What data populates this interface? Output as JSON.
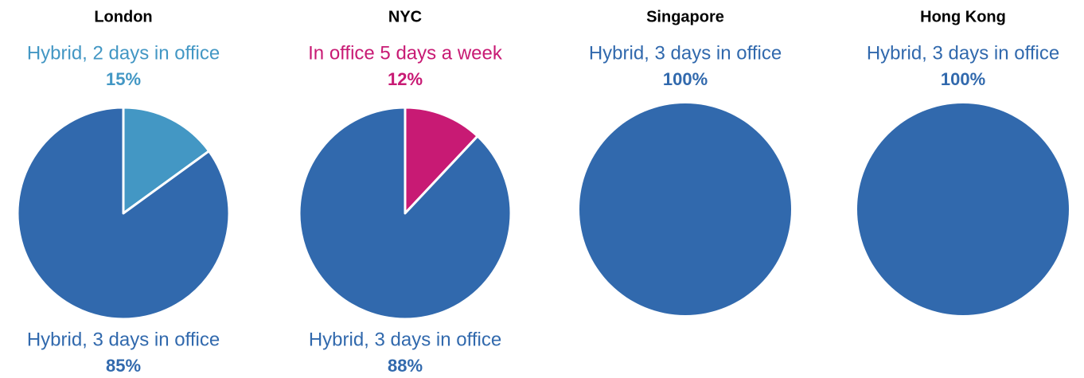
{
  "chart_data": [
    {
      "type": "pie",
      "title": "London",
      "categories": [
        "Hybrid, 2 days in office",
        "Hybrid, 3 days in office"
      ],
      "values": [
        15,
        85
      ],
      "value_labels": [
        "15%",
        "85%"
      ],
      "colors": [
        "#4397c4",
        "#3169ad"
      ]
    },
    {
      "type": "pie",
      "title": "NYC",
      "categories": [
        "In office 5 days a week",
        "Hybrid, 3 days in office"
      ],
      "values": [
        12,
        88
      ],
      "value_labels": [
        "12%",
        "88%"
      ],
      "colors": [
        "#c81a74",
        "#3169ad"
      ]
    },
    {
      "type": "pie",
      "title": "Singapore",
      "categories": [
        "Hybrid, 3 days in office"
      ],
      "values": [
        100
      ],
      "value_labels": [
        "100%"
      ],
      "colors": [
        "#3169ad"
      ]
    },
    {
      "type": "pie",
      "title": "Hong Kong",
      "categories": [
        "Hybrid, 3 days in office"
      ],
      "values": [
        100
      ],
      "value_labels": [
        "100%"
      ],
      "colors": [
        "#3169ad"
      ]
    }
  ]
}
